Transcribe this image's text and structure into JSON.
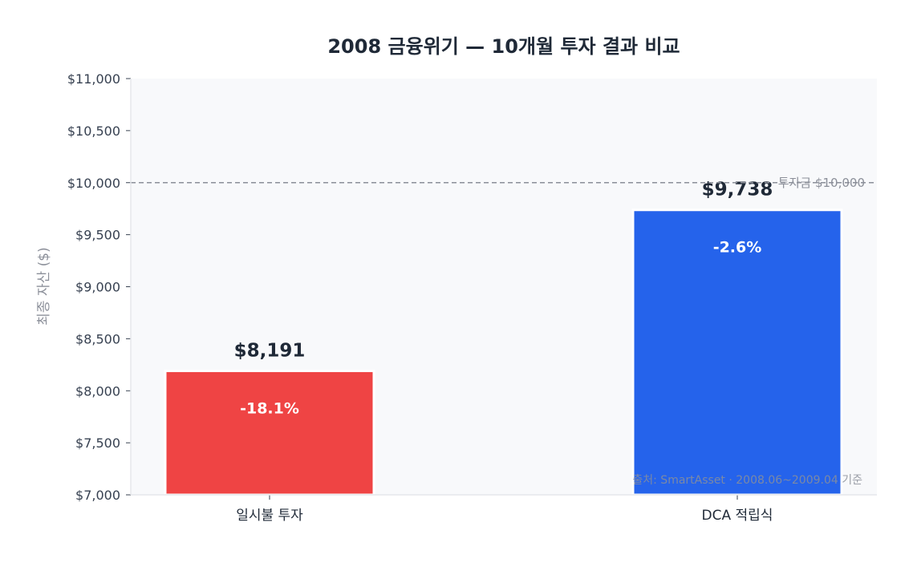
{
  "chart_data": {
    "type": "bar",
    "title": "2008 금융위기 — 10개월 투자 결과 비교",
    "xlabel": "",
    "ylabel": "최종 자산 ($)",
    "ylim": [
      7000,
      11000
    ],
    "yticks": [
      7000,
      7500,
      8000,
      8500,
      9000,
      9500,
      10000,
      10500,
      11000
    ],
    "ytick_labels": [
      "$7,000",
      "$7,500",
      "$8,000",
      "$8,500",
      "$9,000",
      "$9,500",
      "$10,000",
      "$10,500",
      "$11,000"
    ],
    "categories": [
      "일시불 투자",
      "DCA 적립식"
    ],
    "values": [
      8191,
      9738
    ],
    "value_labels": [
      "$8,191",
      "$9,738"
    ],
    "return_labels": [
      "-18.1%",
      "-2.6%"
    ],
    "colors": [
      "#ef4444",
      "#2563eb"
    ],
    "reference_line": {
      "value": 10000,
      "label": "투자금 $10,000",
      "color": "#8b8f99"
    },
    "source_note": "출처: SmartAsset · 2008.06~2009.04 기준",
    "grid": false,
    "plot_background": "#f8f9fb"
  }
}
